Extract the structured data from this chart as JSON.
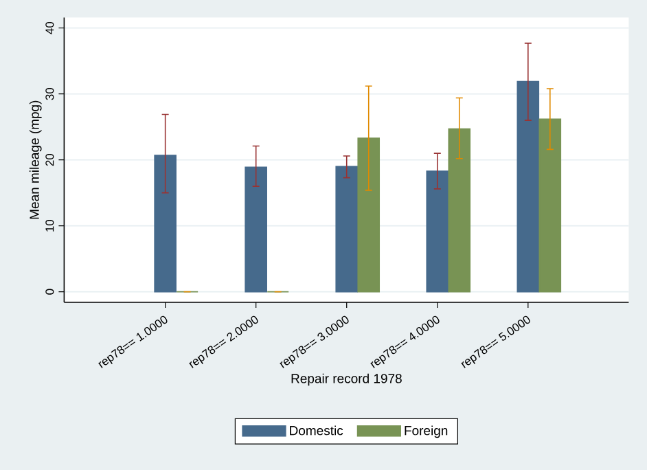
{
  "chart_data": {
    "type": "bar",
    "xlabel": "Repair record 1978",
    "ylabel": "Mean mileage (mpg)",
    "categories": [
      "rep78== 1.0000",
      "rep78== 2.0000",
      "rep78== 3.0000",
      "rep78== 4.0000",
      "rep78== 5.0000"
    ],
    "series": [
      {
        "name": "Domestic",
        "color": "#466a8c",
        "values": [
          20.7,
          18.9,
          19.0,
          18.3,
          31.9
        ],
        "errors": [
          [
            15.0,
            26.9
          ],
          [
            16.0,
            22.1
          ],
          [
            17.3,
            20.6
          ],
          [
            15.6,
            21.0
          ],
          [
            26.0,
            37.7
          ]
        ]
      },
      {
        "name": "Foreign",
        "color": "#789354",
        "values": [
          0,
          0,
          23.3,
          24.7,
          26.2
        ],
        "errors": [
          [
            0,
            0
          ],
          [
            0,
            0
          ],
          [
            15.4,
            31.2
          ],
          [
            20.2,
            29.4
          ],
          [
            21.6,
            30.8
          ]
        ]
      }
    ],
    "ylim": [
      -1.6,
      41.6
    ],
    "yticks": [
      0,
      10,
      20,
      30,
      40
    ],
    "grid": "y",
    "legend": "bottom"
  }
}
